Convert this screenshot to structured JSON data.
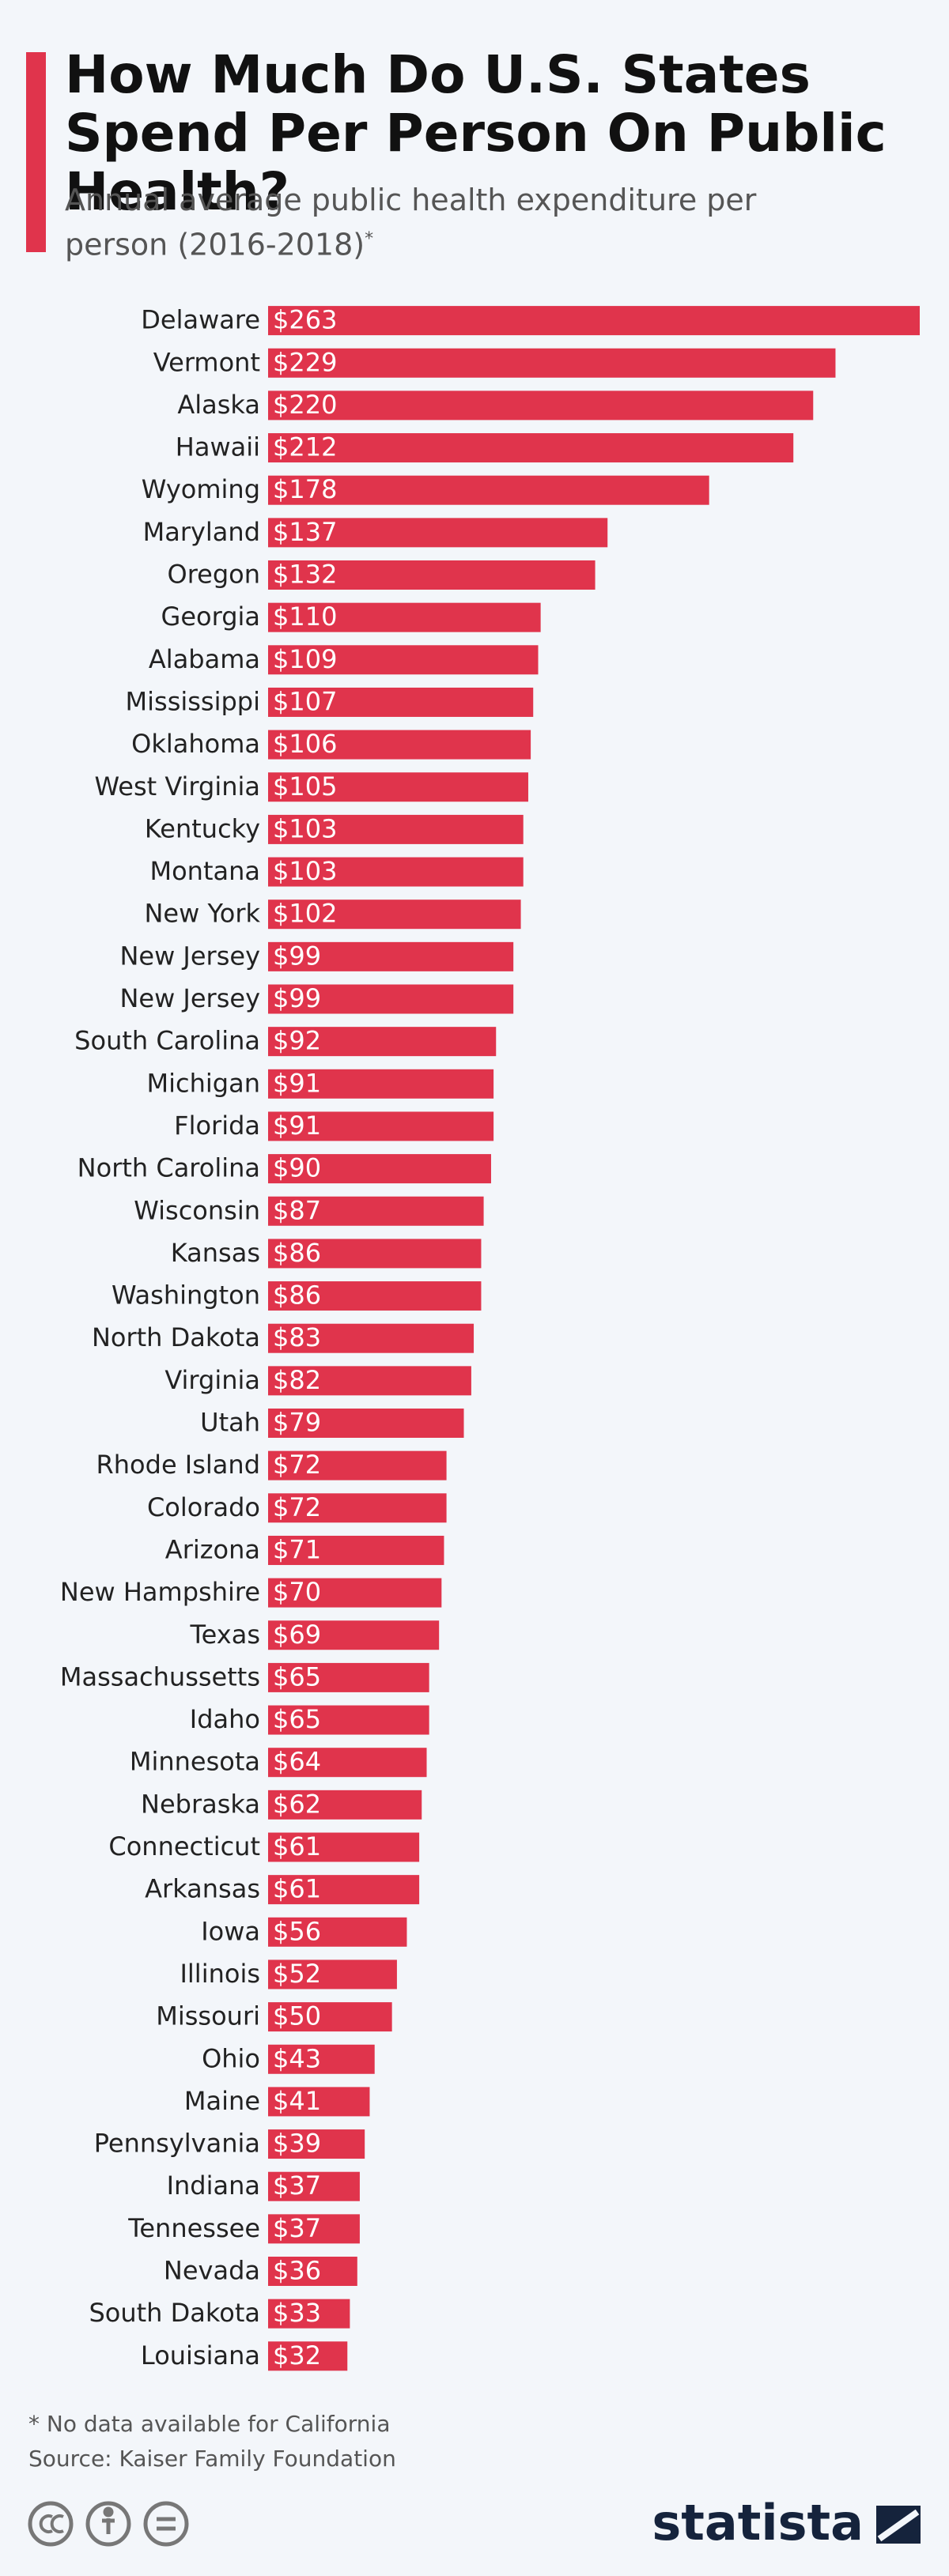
{
  "chart_data": {
    "type": "bar",
    "title": "How Much Do U.S. States Spend Per Person On Public Health?",
    "subtitle": "Annual average public health expenditure per person (2016-2018)",
    "subtitle_mark": "*",
    "categories": [
      "Delaware",
      "Vermont",
      "Alaska",
      "Hawaii",
      "Wyoming",
      "Maryland",
      "Oregon",
      "Georgia",
      "Alabama",
      "Mississippi",
      "Oklahoma",
      "West Virginia",
      "Kentucky",
      "Montana",
      "New York",
      "New Jersey",
      "New Jersey",
      "South Carolina",
      "Michigan",
      "Florida",
      "North Carolina",
      "Wisconsin",
      "Kansas",
      "Washington",
      "North Dakota",
      "Virginia",
      "Utah",
      "Rhode Island",
      "Colorado",
      "Arizona",
      "New Hampshire",
      "Texas",
      "Massachussetts",
      "Idaho",
      "Minnesota",
      "Nebraska",
      "Connecticut",
      "Arkansas",
      "Iowa",
      "Illinois",
      "Missouri",
      "Ohio",
      "Maine",
      "Pennsylvania",
      "Indiana",
      "Tennessee",
      "Nevada",
      "South Dakota",
      "Louisiana"
    ],
    "values": [
      263,
      229,
      220,
      212,
      178,
      137,
      132,
      110,
      109,
      107,
      106,
      105,
      103,
      103,
      102,
      99,
      99,
      92,
      91,
      91,
      90,
      87,
      86,
      86,
      83,
      82,
      79,
      72,
      72,
      71,
      70,
      69,
      65,
      65,
      64,
      62,
      61,
      61,
      56,
      52,
      50,
      43,
      41,
      39,
      37,
      37,
      36,
      33,
      32
    ],
    "value_labels": [
      "$263",
      "$229",
      "$220",
      "$212",
      "$178",
      "$137",
      "$132",
      "$110",
      "$109",
      "$107",
      "$106",
      "$105",
      "$103",
      "$103",
      "$102",
      "$99",
      "$99",
      "$92",
      "$91",
      "$91",
      "$90",
      "$87",
      "$86",
      "$86",
      "$83",
      "$82",
      "$79",
      "$72",
      "$72",
      "$71",
      "$70",
      "$69",
      "$65",
      "$65",
      "$64",
      "$62",
      "$61",
      "$61",
      "$56",
      "$52",
      "$50",
      "$43",
      "$41",
      "$39",
      "$37",
      "$37",
      "$36",
      "$33",
      "$32"
    ],
    "color": "#e0344c",
    "note": "* No data available for California",
    "source": "Source: Kaiser Family Foundation",
    "brand": "statista"
  }
}
